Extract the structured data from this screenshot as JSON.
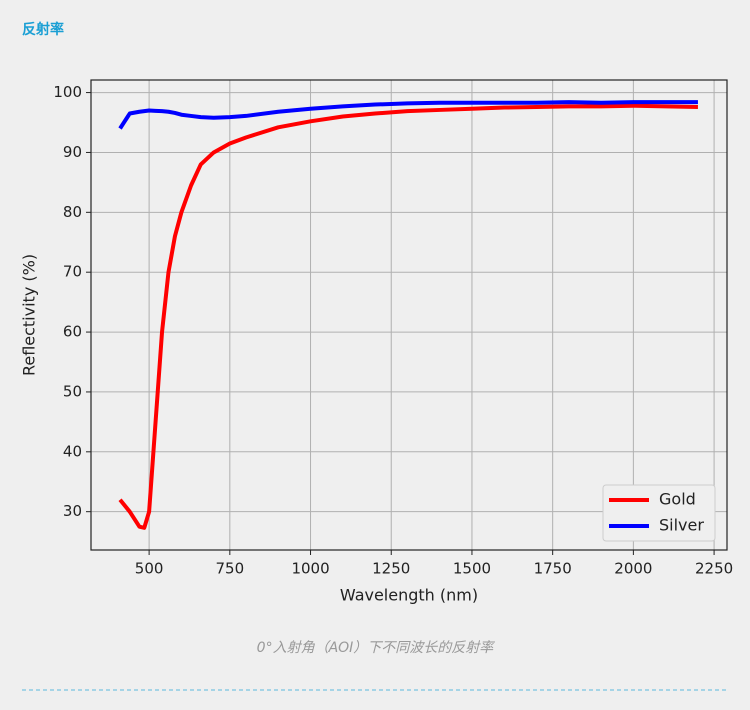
{
  "header": {
    "title": "反射率"
  },
  "chart_data": {
    "type": "line",
    "x_label": "Wavelength (nm)",
    "y_label": "Reflectivity (%)",
    "x": [
      410,
      440,
      470,
      485,
      500,
      520,
      540,
      560,
      580,
      600,
      630,
      660,
      700,
      750,
      800,
      900,
      1000,
      1100,
      1200,
      1300,
      1400,
      1500,
      1600,
      1700,
      1800,
      1900,
      2000,
      2100,
      2200
    ],
    "series": [
      {
        "name": "Gold",
        "color": "#ff0000",
        "values": [
          32,
          30,
          27.5,
          27.3,
          30,
          45,
          60,
          70,
          76,
          80,
          84.5,
          88,
          90,
          91.5,
          92.5,
          94.2,
          95.2,
          96,
          96.5,
          96.9,
          97.1,
          97.3,
          97.5,
          97.6,
          97.7,
          97.7,
          97.8,
          97.7,
          97.6
        ]
      },
      {
        "name": "Silver",
        "color": "#0000ff",
        "values": [
          94,
          96.5,
          96.8,
          96.9,
          97,
          96.95,
          96.9,
          96.8,
          96.6,
          96.3,
          96.1,
          95.9,
          95.8,
          95.9,
          96.1,
          96.8,
          97.3,
          97.7,
          98,
          98.2,
          98.3,
          98.3,
          98.3,
          98.3,
          98.4,
          98.3,
          98.4,
          98.4,
          98.4
        ]
      }
    ],
    "xlim": [
      320,
      2290
    ],
    "ylim": [
      23.6,
      102.1
    ],
    "xticks": [
      500,
      750,
      1000,
      1250,
      1500,
      1750,
      2000,
      2250
    ],
    "yticks": [
      30,
      40,
      50,
      60,
      70,
      80,
      90,
      100
    ],
    "grid": true,
    "legend": "lower right"
  },
  "caption": "0°入射角（AOI）下不同波长的反射率"
}
